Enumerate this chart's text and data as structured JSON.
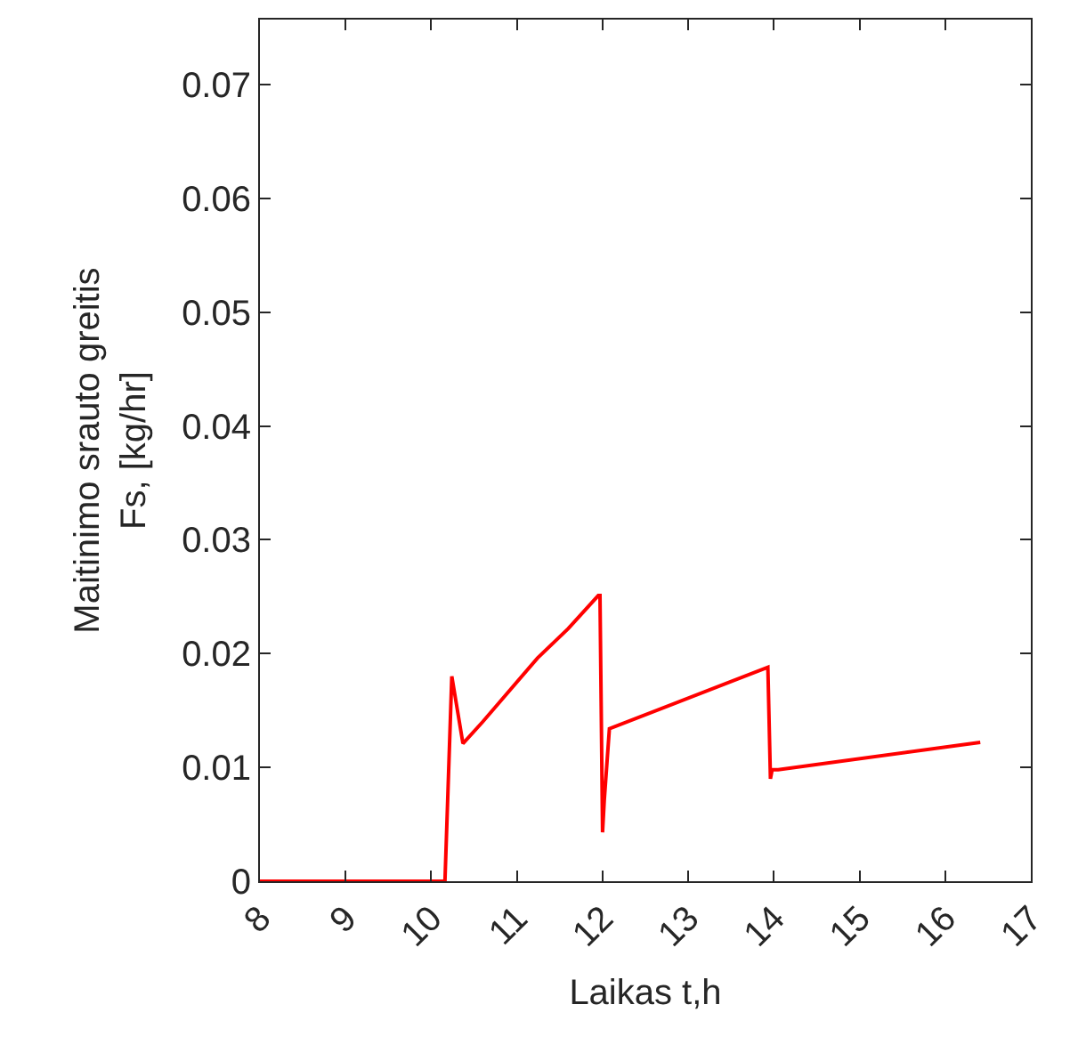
{
  "chart_data": {
    "type": "line",
    "xlabel": "Laikas t,h",
    "ylabel": "Maitinimo srauto greitis\nFs, [kg/hr]",
    "x": [
      8,
      10.16,
      10.24,
      10.37,
      10.6,
      11.24,
      11.6,
      11.95,
      11.97,
      12.0,
      12.02,
      12.08,
      13.93,
      13.96,
      13.98,
      14.05,
      16.41
    ],
    "series": [
      {
        "color": "#ff0000",
        "values": [
          0,
          0,
          0.018,
          0.0121,
          0.014,
          0.0196,
          0.0222,
          0.0251,
          0.0251,
          0.0043,
          0.0071,
          0.0134,
          0.0188,
          0.009,
          0.0098,
          0.0098,
          0.0122
        ]
      }
    ],
    "xlim": [
      8,
      17
    ],
    "xticks": [
      8,
      9,
      10,
      11,
      12,
      13,
      14,
      15,
      16,
      17
    ],
    "ylim": [
      0,
      0.0757
    ],
    "yticks": [
      0,
      0.01,
      0.02,
      0.03,
      0.04,
      0.05,
      0.06,
      0.07
    ],
    "grid": false,
    "marker": "none",
    "line_style": "solid"
  }
}
